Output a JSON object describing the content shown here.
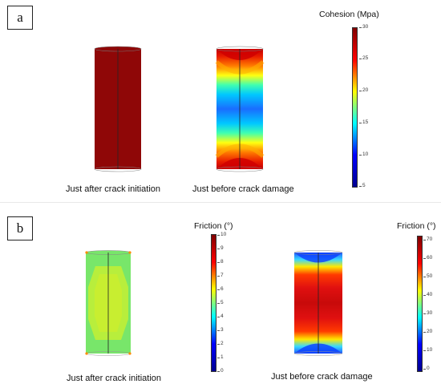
{
  "panels": [
    {
      "label": "a",
      "captions": [
        "Just after crack initiation",
        "Just before crack damage"
      ],
      "colorbar": {
        "title": "Cohesion (Mpa)",
        "ticks": [
          "30",
          "25",
          "20",
          "15",
          "10",
          "5"
        ]
      }
    },
    {
      "label": "b",
      "captions": [
        "Just after crack initiation",
        "Just before crack damage"
      ],
      "colorbars": [
        {
          "title": "Friction (°)",
          "ticks": [
            "10",
            "9",
            "8",
            "7",
            "6",
            "5",
            "4",
            "3",
            "2",
            "1",
            "0"
          ]
        },
        {
          "title": "Friction (°)",
          "ticks": [
            "70",
            "60",
            "50",
            "40",
            "30",
            "20",
            "10",
            "0"
          ]
        }
      ]
    }
  ],
  "colors": {
    "jet": [
      "#00008f",
      "#0000ff",
      "#00ffff",
      "#ffff00",
      "#ff0000",
      "#800000"
    ]
  }
}
